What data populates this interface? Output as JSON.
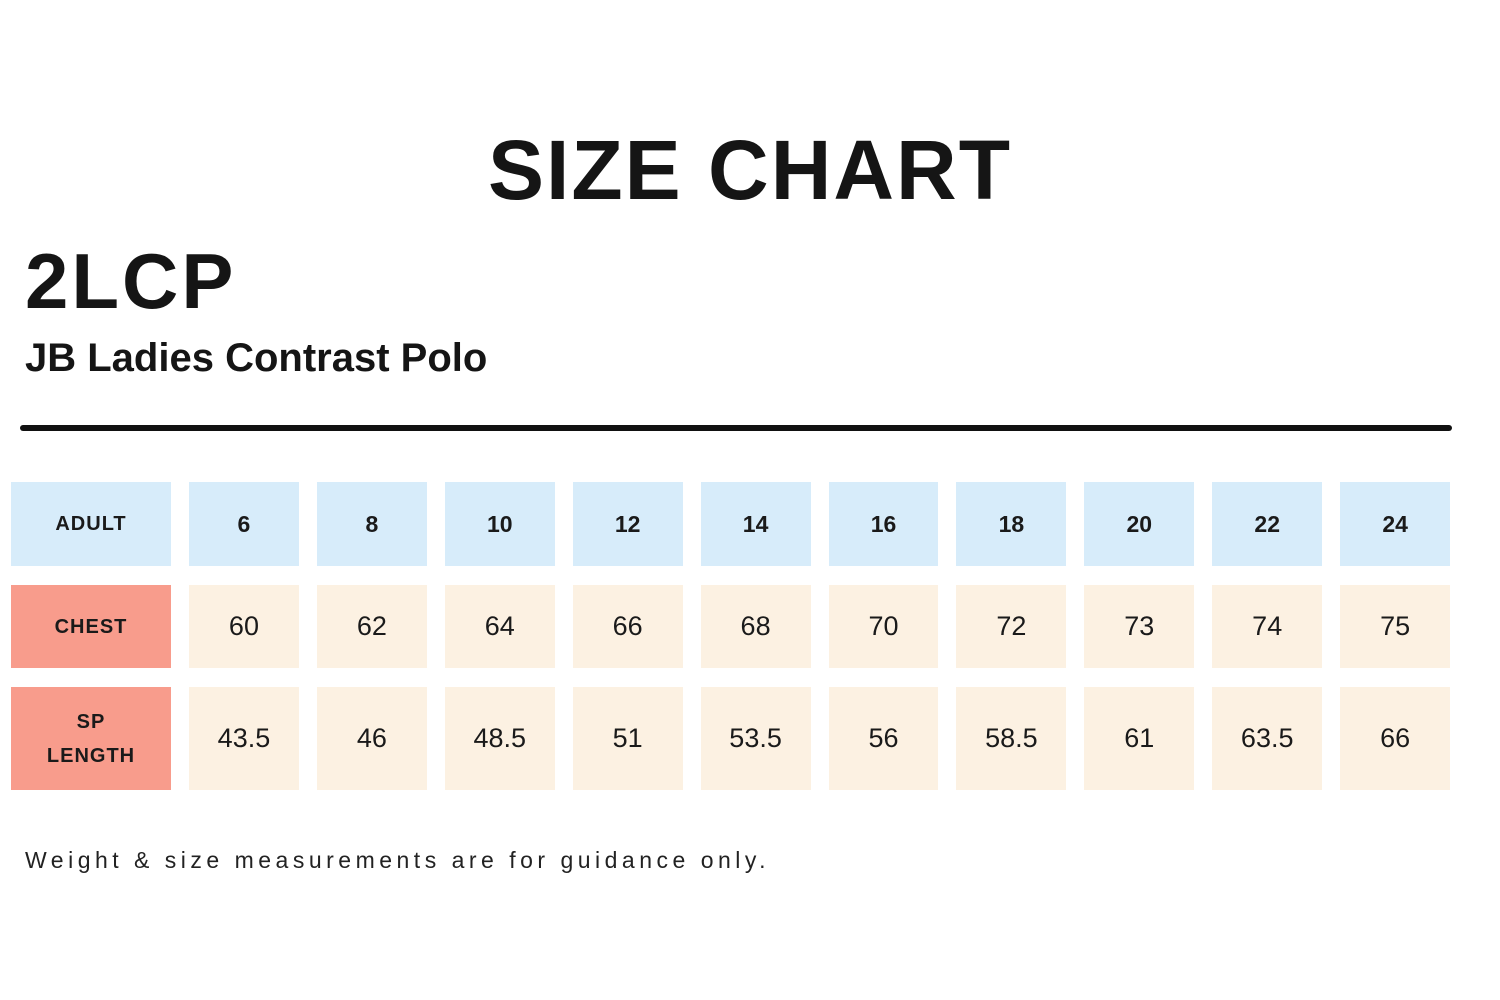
{
  "chart_data": {
    "type": "table",
    "title": "SIZE CHART",
    "product_code": "2LCP",
    "product_name": "JB Ladies Contrast Polo",
    "columns": [
      "ADULT",
      "6",
      "8",
      "10",
      "12",
      "14",
      "16",
      "18",
      "20",
      "22",
      "24"
    ],
    "rows": [
      {
        "label": "CHEST",
        "values": [
          "60",
          "62",
          "64",
          "66",
          "68",
          "70",
          "72",
          "73",
          "74",
          "75"
        ]
      },
      {
        "label": "SP LENGTH",
        "values": [
          "43.5",
          "46",
          "48.5",
          "51",
          "53.5",
          "56",
          "58.5",
          "61",
          "63.5",
          "66"
        ]
      }
    ],
    "note": "Weight & size measurements are for guidance only.",
    "legend_position": "none",
    "grid": false
  },
  "colors": {
    "header_cell_bg": "#D7ECFA",
    "label_cell_bg": "#F89C8C",
    "value_cell_bg": "#FCF1E2",
    "divider": "#111111",
    "text": "#1a1a1a",
    "background": "#ffffff"
  }
}
